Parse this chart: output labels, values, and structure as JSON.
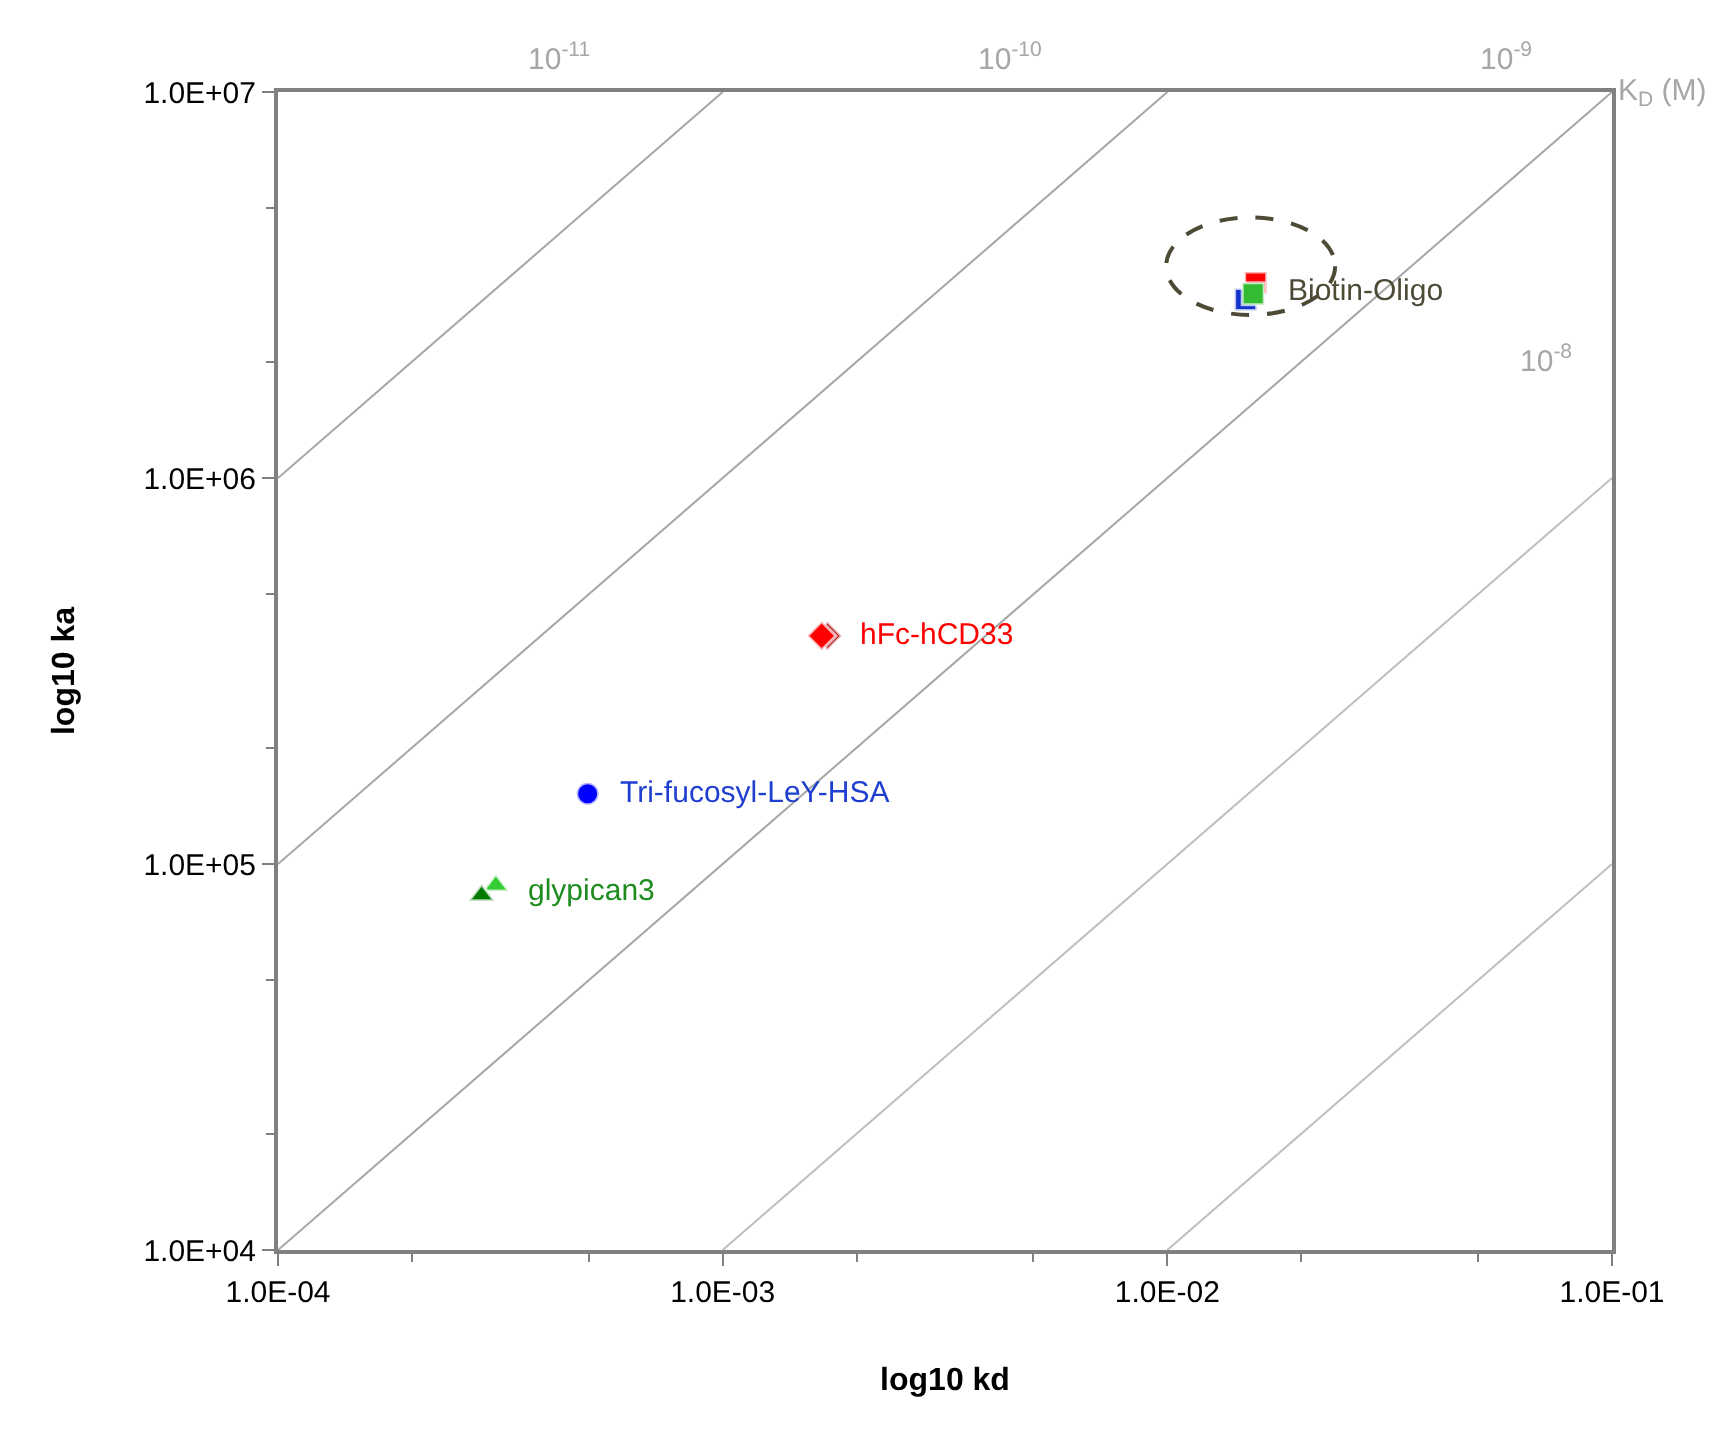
{
  "chart_data": {
    "type": "scatter",
    "xlabel": "log10 kd",
    "ylabel": "log10 ka",
    "log": "xy",
    "grid": false,
    "legend": false,
    "xlim": [
      0.0001,
      0.1
    ],
    "xticks": [
      {
        "value": 0.0001,
        "label": "1.0E-04"
      },
      {
        "value": 0.001,
        "label": "1.0E-03"
      },
      {
        "value": 0.01,
        "label": "1.0E-02"
      },
      {
        "value": 0.1,
        "label": "1.0E-01"
      }
    ],
    "ylim": [
      10000,
      10000000
    ],
    "yticks": [
      {
        "value": 10000,
        "label": "1.0E+04"
      },
      {
        "value": 100000,
        "label": "1.0E+05"
      },
      {
        "value": 1000000,
        "label": "1.0E+06"
      },
      {
        "value": 10000000,
        "label": "1.0E+07"
      }
    ],
    "series": [
      {
        "type": "line",
        "color": "#a6a6a6",
        "x": [
          0.0001,
          0.001
        ],
        "values": [
          1000000,
          10000000
        ]
      },
      {
        "type": "line",
        "color": "#a6a6a6",
        "x": [
          0.0001,
          0.01
        ],
        "values": [
          100000,
          10000000
        ]
      },
      {
        "type": "line",
        "color": "#a6a6a6",
        "x": [
          0.0001,
          0.1
        ],
        "values": [
          10000,
          10000000
        ]
      },
      {
        "type": "line",
        "color": "#bfbfbf",
        "x": [
          0.001,
          0.1
        ],
        "values": [
          10000,
          1000000
        ]
      },
      {
        "type": "line",
        "color": "#bfbfbf",
        "x": [
          0.01,
          0.1
        ],
        "values": [
          10000,
          100000
        ]
      },
      {
        "name": "Biotin-Oligo",
        "type": "scatter",
        "marker": "square",
        "color": "#4d4a36",
        "colors": [
          "#ff0000",
          "#1133cc",
          "#33bb33"
        ],
        "x": [
          0.0158,
          0.015,
          0.0156
        ],
        "values": [
          3200000,
          2900000,
          3000000
        ]
      },
      {
        "name": "hFc-hCD33",
        "type": "scatter",
        "marker": "diamond",
        "color": "#ff0000",
        "colors": [
          "#b01010",
          "#ff0000"
        ],
        "x": [
          0.00172,
          0.00167
        ],
        "values": [
          390000,
          390000
        ]
      },
      {
        "name": "Tri-fucosyl-LeY-HSA",
        "type": "scatter",
        "marker": "circle",
        "color": "#1f3fd0",
        "colors": [
          "#0000ff"
        ],
        "x": [
          0.000497
        ],
        "values": [
          152000
        ]
      },
      {
        "name": "glypican3",
        "type": "scatter",
        "marker": "triangle",
        "color": "#1e8c1e",
        "colors": [
          "#33cc33",
          "#007a00"
        ],
        "x": [
          0.000309,
          0.000287
        ],
        "values": [
          88000,
          83000
        ]
      }
    ],
    "annotations": [
      "K$_{D}$ (M)",
      "10$^{-11}$",
      "10$^{-10}$",
      "10$^{-9}$",
      "10$^{-8}$"
    ]
  }
}
